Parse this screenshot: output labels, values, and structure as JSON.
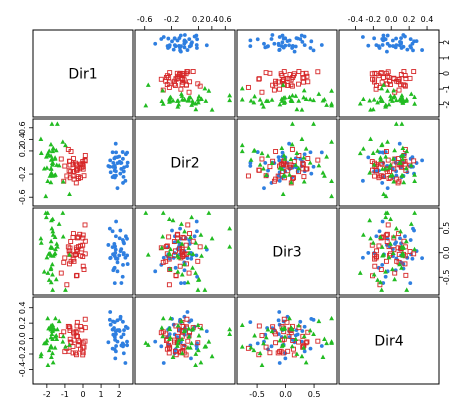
{
  "chart_data": {
    "type": "scatter",
    "variables": [
      "Dir1",
      "Dir2",
      "Dir3",
      "Dir4"
    ],
    "groups": [
      {
        "color": "#2f7fe0",
        "marker": "filled-circle"
      },
      {
        "color": "#d62728",
        "marker": "open-square"
      },
      {
        "color": "#22bb22",
        "marker": "filled-triangle"
      }
    ],
    "ranges": {
      "Dir1": [
        -2.6,
        2.6
      ],
      "Dir2": [
        -0.7,
        0.7
      ],
      "Dir3": [
        -0.8,
        0.85
      ],
      "Dir4": [
        -0.55,
        0.5
      ]
    },
    "ticks": {
      "Dir1": [
        "-2",
        "-1",
        "0",
        "1",
        "2"
      ],
      "Dir2": [
        "-0.6",
        "-0.2",
        "0.2",
        "0.4",
        "0.6"
      ],
      "Dir3": [
        "-0.5",
        "0.0",
        "0.5"
      ],
      "Dir4": [
        "-0.4",
        "-0.2",
        "0.0",
        "0.2",
        "0.4"
      ]
    },
    "group_centers": {
      "Dir1": [
        2.0,
        -0.4,
        -1.7
      ],
      "Dir2": [
        -0.05,
        -0.1,
        0.05
      ]
    },
    "group_spreads": {
      "Dir1": [
        0.3,
        0.35,
        0.35
      ],
      "Dir2": [
        0.15,
        0.15,
        0.3
      ],
      "Dir3": [
        0.3,
        0.3,
        0.4
      ],
      "Dir4": [
        0.17,
        0.15,
        0.15
      ]
    },
    "points_per_group": 40,
    "grid": false,
    "legend": "none"
  }
}
